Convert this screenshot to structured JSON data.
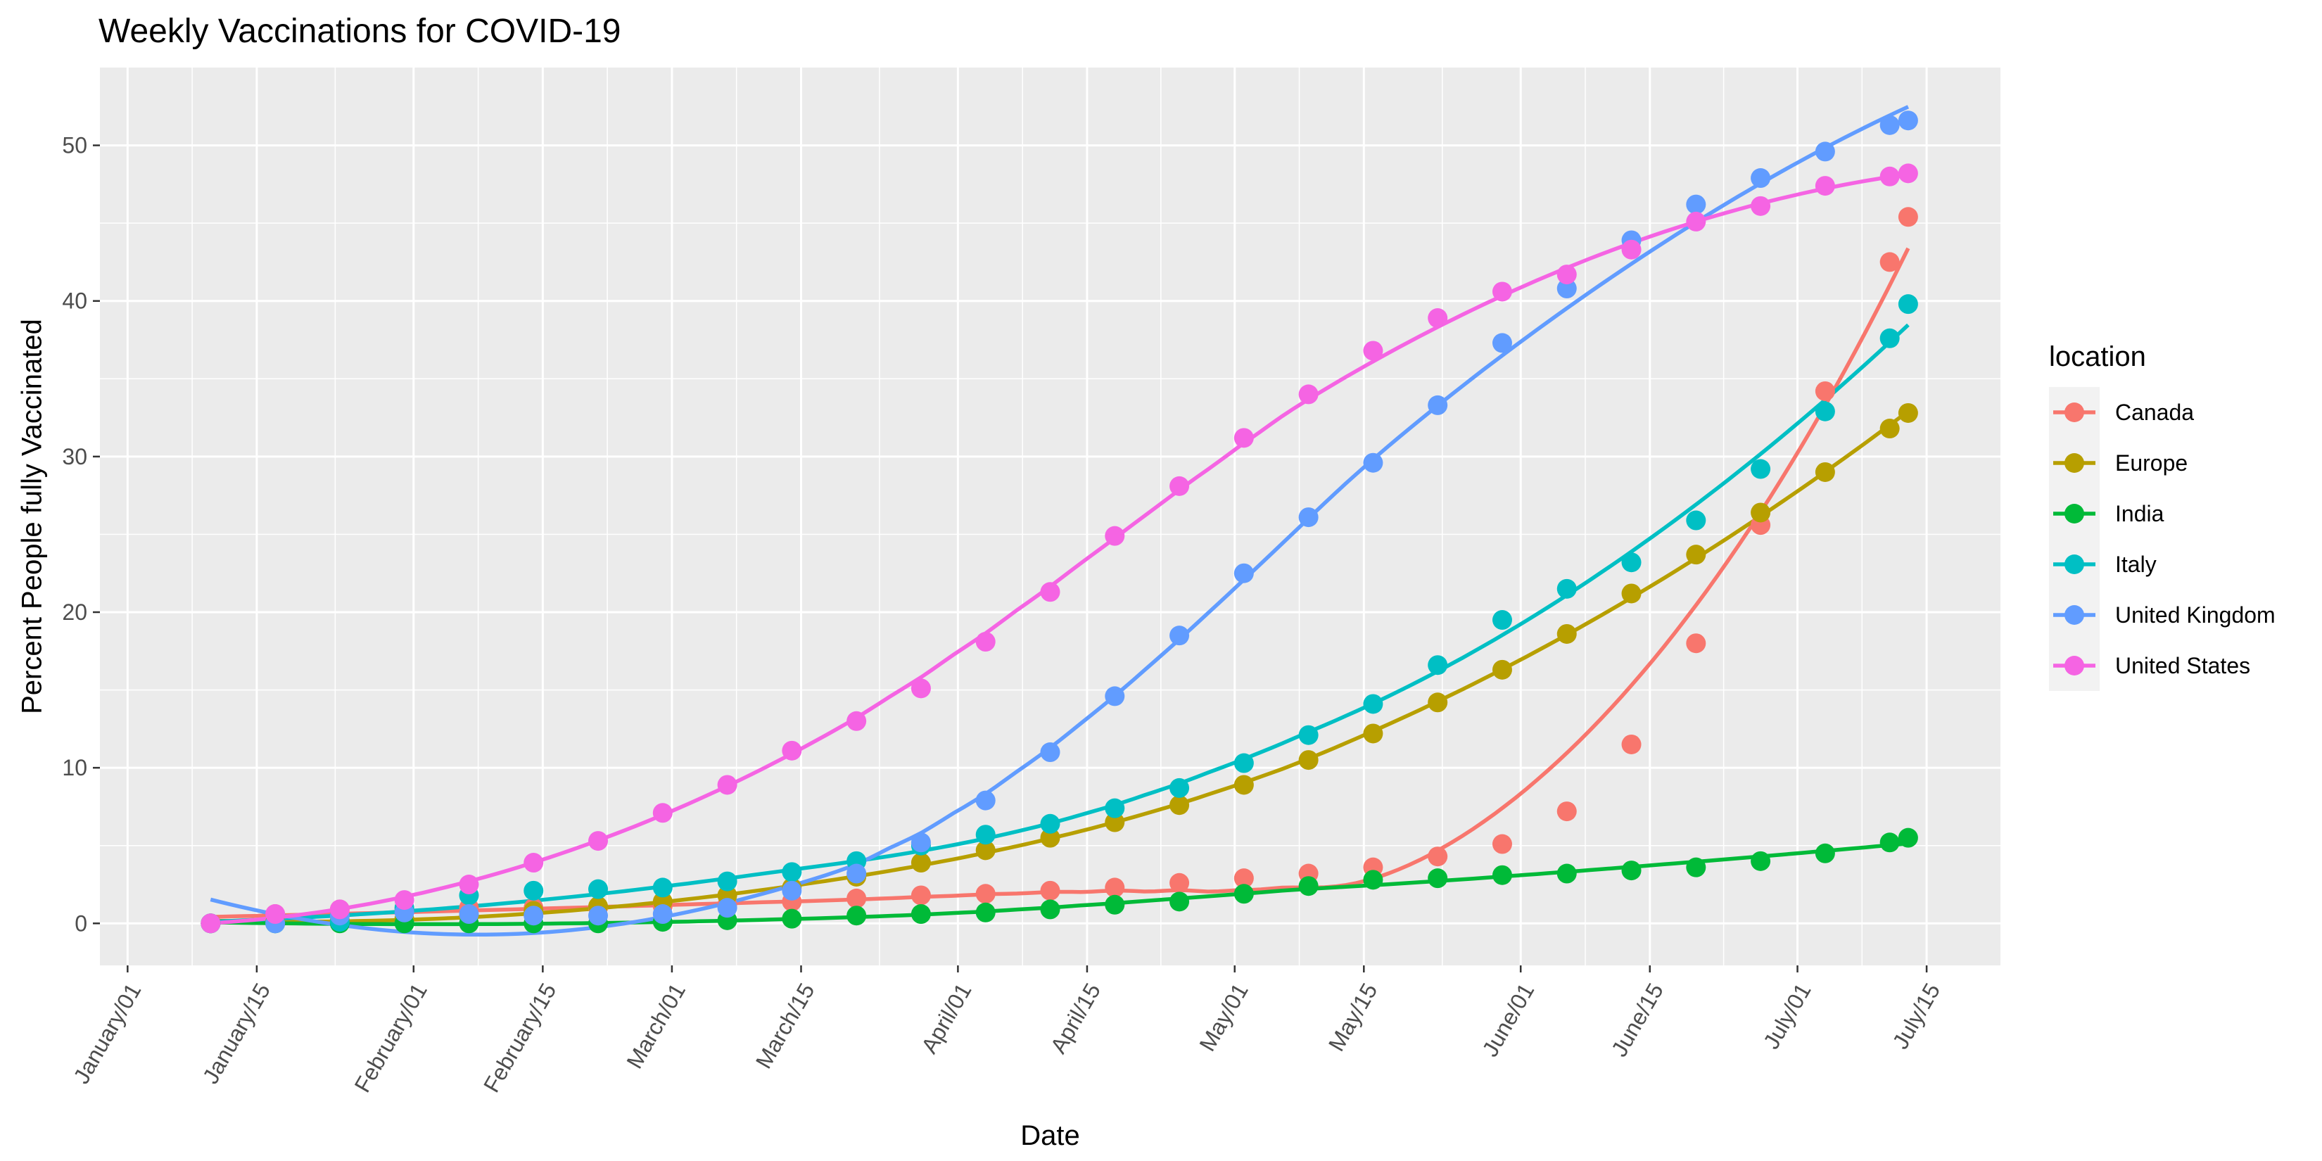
{
  "chart_data": {
    "type": "scatter",
    "title": "Weekly Vaccinations for COVID-19",
    "xlabel": "Date",
    "ylabel": "Percent People fully Vaccinated",
    "x_axis": {
      "type": "date",
      "range": [
        "2020-12-29",
        "2021-07-23"
      ],
      "ticks": [
        {
          "date": "2021-01-01",
          "label": "January/01"
        },
        {
          "date": "2021-01-15",
          "label": "January/15"
        },
        {
          "date": "2021-02-01",
          "label": "February/01"
        },
        {
          "date": "2021-02-15",
          "label": "February/15"
        },
        {
          "date": "2021-03-01",
          "label": "March/01"
        },
        {
          "date": "2021-03-15",
          "label": "March/15"
        },
        {
          "date": "2021-04-01",
          "label": "April/01"
        },
        {
          "date": "2021-04-15",
          "label": "April/15"
        },
        {
          "date": "2021-05-01",
          "label": "May/01"
        },
        {
          "date": "2021-05-15",
          "label": "May/15"
        },
        {
          "date": "2021-06-01",
          "label": "June/01"
        },
        {
          "date": "2021-06-15",
          "label": "June/15"
        },
        {
          "date": "2021-07-01",
          "label": "July/01"
        },
        {
          "date": "2021-07-15",
          "label": "July/15"
        }
      ]
    },
    "y_axis": {
      "range": [
        -2.7,
        55
      ],
      "ticks": [
        0,
        10,
        20,
        30,
        40,
        50
      ]
    },
    "grid": true,
    "legend": {
      "title": "location",
      "position": "right"
    },
    "dates": [
      "2021-01-10",
      "2021-01-17",
      "2021-01-24",
      "2021-01-31",
      "2021-02-07",
      "2021-02-14",
      "2021-02-21",
      "2021-02-28",
      "2021-03-07",
      "2021-03-14",
      "2021-03-21",
      "2021-03-28",
      "2021-04-04",
      "2021-04-11",
      "2021-04-18",
      "2021-04-25",
      "2021-05-02",
      "2021-05-09",
      "2021-05-16",
      "2021-05-23",
      "2021-05-30",
      "2021-06-06",
      "2021-06-13",
      "2021-06-20",
      "2021-06-27",
      "2021-07-04",
      "2021-07-11",
      "2021-07-13"
    ],
    "series": [
      {
        "name": "Canada",
        "color": "#F8766D",
        "smooth": true,
        "values": [
          0.0,
          0.6,
          0.9,
          0.9,
          1.0,
          1.0,
          1.0,
          1.1,
          1.2,
          1.4,
          1.6,
          1.8,
          1.9,
          2.1,
          2.3,
          2.6,
          2.9,
          3.2,
          3.6,
          4.3,
          5.1,
          7.2,
          11.5,
          18.0,
          25.6,
          34.2,
          42.5,
          45.4
        ]
      },
      {
        "name": "Europe",
        "color": "#B79F00",
        "smooth": true,
        "values": [
          0.0,
          0.1,
          0.2,
          0.3,
          0.5,
          0.8,
          1.1,
          1.4,
          1.8,
          2.3,
          3.0,
          3.9,
          4.7,
          5.5,
          6.5,
          7.6,
          8.9,
          10.5,
          12.2,
          14.2,
          16.3,
          18.6,
          21.2,
          23.7,
          26.4,
          29.0,
          31.8,
          32.8
        ]
      },
      {
        "name": "India",
        "color": "#00BA38",
        "smooth": true,
        "values": [
          0.0,
          0.0,
          0.0,
          0.0,
          0.0,
          0.0,
          0.0,
          0.1,
          0.2,
          0.3,
          0.5,
          0.6,
          0.7,
          0.9,
          1.2,
          1.4,
          1.9,
          2.4,
          2.8,
          2.9,
          3.1,
          3.2,
          3.4,
          3.6,
          4.0,
          4.5,
          5.2,
          5.5
        ]
      },
      {
        "name": "Italy",
        "color": "#00BFC4",
        "smooth": true,
        "values": [
          0.0,
          0.0,
          0.1,
          1.0,
          1.8,
          2.1,
          2.2,
          2.3,
          2.7,
          3.3,
          4.0,
          5.0,
          5.7,
          6.4,
          7.4,
          8.7,
          10.3,
          12.1,
          14.1,
          16.6,
          19.5,
          21.5,
          23.2,
          25.9,
          29.2,
          32.9,
          37.6,
          39.8
        ]
      },
      {
        "name": "United Kingdom",
        "color": "#619CFF",
        "smooth": true,
        "values": [
          0.0,
          0.0,
          0.5,
          0.7,
          0.6,
          0.5,
          0.5,
          0.6,
          1.0,
          2.1,
          3.2,
          5.2,
          7.9,
          11.0,
          14.6,
          18.5,
          22.5,
          26.1,
          29.6,
          33.3,
          37.3,
          40.8,
          43.9,
          46.2,
          47.9,
          49.6,
          51.3,
          51.6
        ]
      },
      {
        "name": "United States",
        "color": "#F564E3",
        "smooth": true,
        "values": [
          0.0,
          0.6,
          0.9,
          1.5,
          2.5,
          3.9,
          5.3,
          7.1,
          8.9,
          11.1,
          13.0,
          15.1,
          18.1,
          21.3,
          24.9,
          28.1,
          31.2,
          34.0,
          36.8,
          38.9,
          40.6,
          41.7,
          43.3,
          45.1,
          46.1,
          47.4,
          48.0,
          48.2
        ]
      }
    ]
  }
}
